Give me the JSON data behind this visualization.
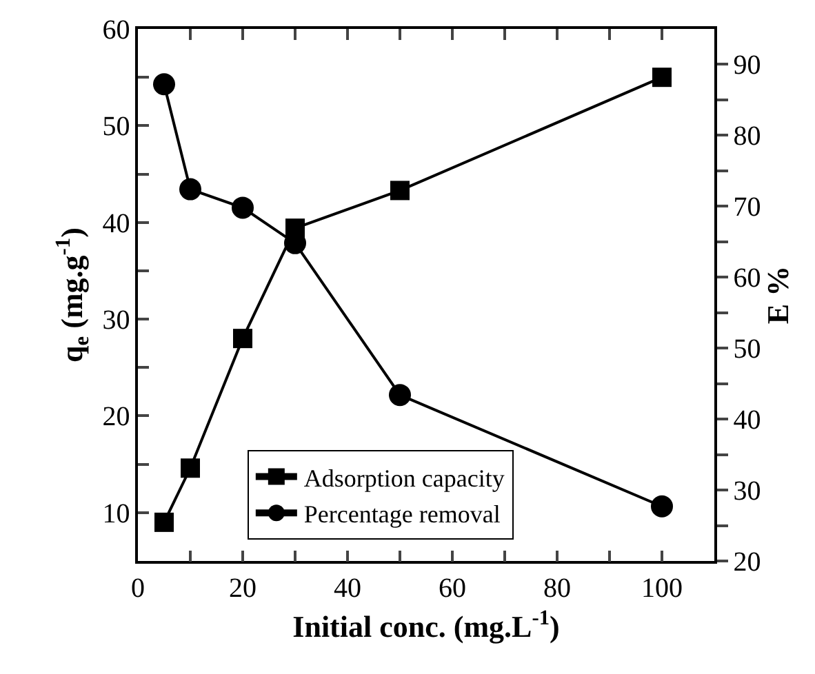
{
  "chart_data": {
    "type": "line",
    "xlabel": "Initial conc. (mg.L$^{-1}$)",
    "ylabel": "q$_{e}$ (mg.g$^{-1}$)",
    "y2label": "E %",
    "x": [
      5,
      10,
      20,
      30,
      50,
      100
    ],
    "series": [
      {
        "name": "Adsorption capacity",
        "color": "#000000",
        "marker": "square",
        "values": [
          9,
          14.6,
          28,
          39.4,
          43.3,
          55
        ]
      },
      {
        "name": "Percentage removal",
        "color": "#000000",
        "marker": "circle",
        "axis": "y2",
        "values": [
          87.2,
          72.4,
          69.8,
          64.8,
          43.4,
          27.7
        ]
      }
    ],
    "xlim": [
      0,
      110
    ],
    "xticks": [
      0,
      {
        "value": 10,
        "label": null
      },
      20,
      {
        "value": 30,
        "label": null
      },
      40,
      {
        "value": 50,
        "label": null
      },
      60,
      {
        "value": 70,
        "label": null
      },
      80,
      {
        "value": 90,
        "label": null
      },
      100
    ],
    "ylim": [
      5,
      60
    ],
    "yticks": [
      {
        "value": 5,
        "label": null
      },
      10,
      {
        "value": 15,
        "label": null
      },
      20,
      {
        "value": 25,
        "label": null
      },
      30,
      {
        "value": 35,
        "label": null
      },
      40,
      {
        "value": 45,
        "label": null
      },
      50,
      {
        "value": 55,
        "label": null
      },
      60
    ],
    "y2lim": [
      20,
      95
    ],
    "y2ticks": [
      20,
      {
        "value": 25,
        "label": null
      },
      30,
      {
        "value": 35,
        "label": null
      },
      40,
      {
        "value": 45,
        "label": null
      },
      50,
      {
        "value": 55,
        "label": null
      },
      60,
      {
        "value": 65,
        "label": null
      },
      70,
      {
        "value": 75,
        "label": null
      },
      80,
      {
        "value": 85,
        "label": null
      },
      90
    ],
    "line_style": "solid",
    "legend": "bottom"
  }
}
